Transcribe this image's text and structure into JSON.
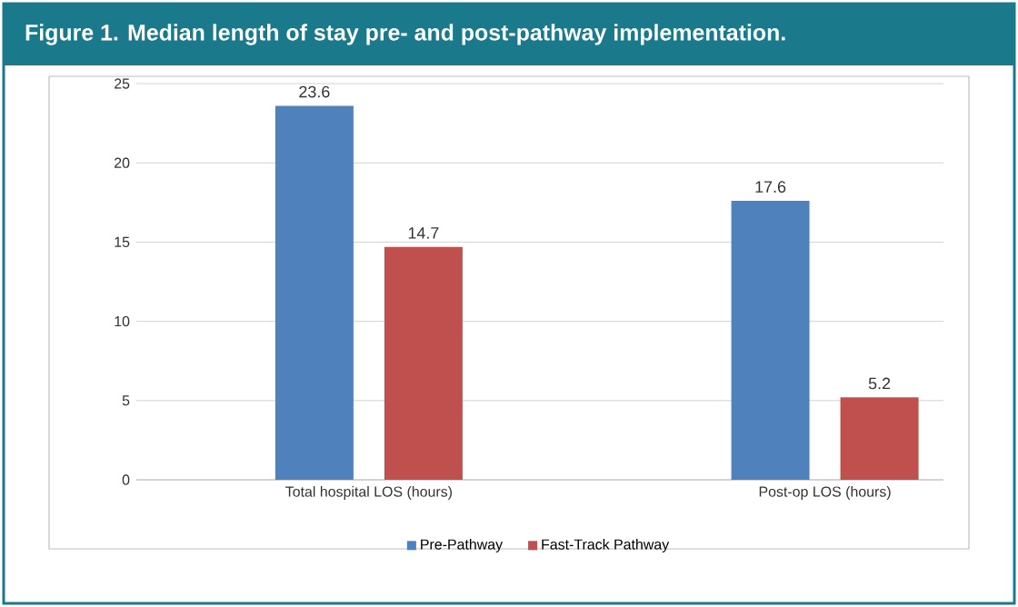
{
  "chart_data": {
    "type": "bar",
    "title": "Figure 1. Median length of stay pre- and post-pathway implementation.",
    "categories": [
      "Total hospital LOS (hours)",
      "Post-op LOS (hours)"
    ],
    "series": [
      {
        "name": "Pre-Pathway",
        "color": "#4f81bd",
        "values": [
          23.6,
          17.6
        ]
      },
      {
        "name": "Fast-Track Pathway",
        "color": "#c0504d",
        "values": [
          14.7,
          5.2
        ]
      }
    ],
    "ylim": [
      0,
      25
    ],
    "yticks": [
      0,
      5,
      10,
      15,
      20,
      25
    ],
    "grid": "y",
    "legend": "bottom",
    "data_labels": true
  }
}
